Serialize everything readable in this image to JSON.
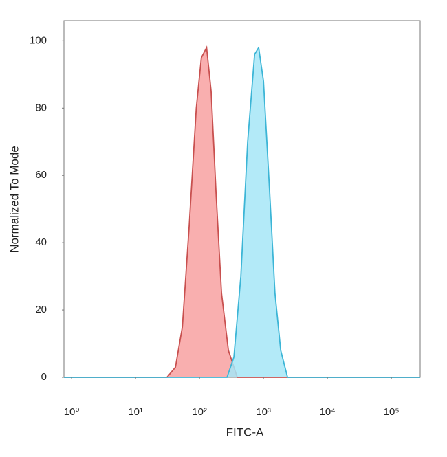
{
  "chart_data": {
    "type": "area",
    "xlabel": "FITC-A",
    "ylabel": "Normalized To Mode",
    "xscale": "log",
    "xlim": [
      0.76,
      282000
    ],
    "ylim": [
      0,
      106
    ],
    "xticks": [
      {
        "value": 1,
        "label": "10⁰"
      },
      {
        "value": 10,
        "label": "10¹"
      },
      {
        "value": 100,
        "label": "10²"
      },
      {
        "value": 1000,
        "label": "10³"
      },
      {
        "value": 10000,
        "label": "10⁴"
      },
      {
        "value": 100000,
        "label": "10⁵"
      }
    ],
    "yticks": [
      0,
      20,
      40,
      60,
      80,
      100
    ],
    "series": [
      {
        "color": "#c8504f",
        "fill": "#f8a1a1",
        "x": [
          0.76,
          31,
          42,
          54,
          69,
          89,
          107,
          129,
          152,
          181,
          221,
          283,
          389,
          282000
        ],
        "values": [
          0,
          0,
          3,
          15,
          45,
          80,
          95,
          98,
          85,
          55,
          25,
          8,
          0,
          0
        ]
      },
      {
        "color": "#3cb5d6",
        "fill": "#a6e6f7",
        "x": [
          0.76,
          269,
          345,
          443,
          566,
          727,
          840,
          1000,
          1250,
          1510,
          1860,
          2380,
          282000
        ],
        "values": [
          0,
          0,
          6,
          30,
          70,
          96,
          98,
          88,
          55,
          25,
          8,
          0,
          0
        ]
      }
    ]
  }
}
